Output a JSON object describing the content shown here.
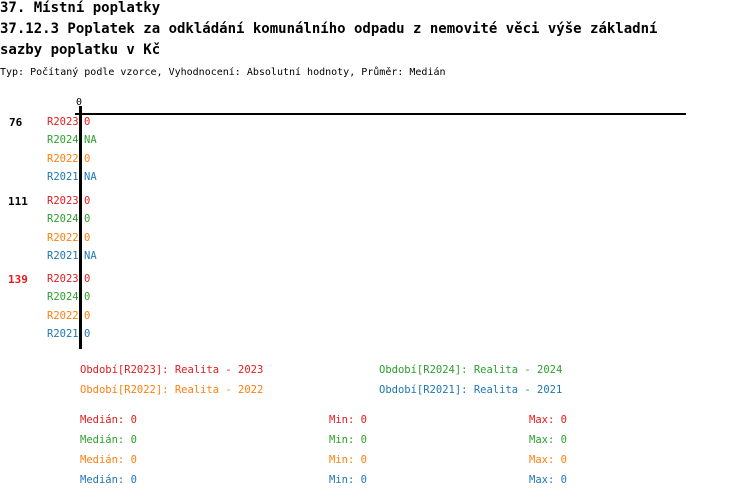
{
  "header": {
    "title1": "37. Místní poplatky",
    "title2a": "37.12.3 Poplatek za odkládání komunálního odpadu z nemovité věci   výše základní",
    "title2b": "sazby poplatku v Kč",
    "subtitle": "Typ: Počítaný podle vzorce, Vyhodnocení: Absolutní hodnoty, Průměr: Medián"
  },
  "colors": {
    "R2023": "#e41a1c",
    "R2024": "#2ca02c",
    "R2022": "#ff7f0e",
    "R2021": "#1f77b4",
    "highlight": "#e41a1c"
  },
  "chart_data": {
    "type": "bar",
    "orientation": "horizontal",
    "x_tick_labels": [
      "0"
    ],
    "groups": [
      {
        "label": "76",
        "highlight": false,
        "rows": [
          {
            "series": "R2023",
            "value": "0"
          },
          {
            "series": "R2024",
            "value": "NA"
          },
          {
            "series": "R2022",
            "value": "0"
          },
          {
            "series": "R2021",
            "value": "NA"
          }
        ]
      },
      {
        "label": "111",
        "highlight": false,
        "rows": [
          {
            "series": "R2023",
            "value": "0"
          },
          {
            "series": "R2024",
            "value": "0"
          },
          {
            "series": "R2022",
            "value": "0"
          },
          {
            "series": "R2021",
            "value": "NA"
          }
        ]
      },
      {
        "label": "139",
        "highlight": true,
        "rows": [
          {
            "series": "R2023",
            "value": "0"
          },
          {
            "series": "R2024",
            "value": "0"
          },
          {
            "series": "R2022",
            "value": "0"
          },
          {
            "series": "R2021",
            "value": "0"
          }
        ]
      }
    ],
    "legend": [
      {
        "series": "R2023",
        "text": "Období[R2023]: Realita - 2023"
      },
      {
        "series": "R2024",
        "text": "Období[R2024]: Realita - 2024"
      },
      {
        "series": "R2022",
        "text": "Období[R2022]: Realita - 2022"
      },
      {
        "series": "R2021",
        "text": "Období[R2021]: Realita - 2021"
      }
    ],
    "stats": [
      {
        "series": "R2023",
        "median": "Medián: 0",
        "min": "Min: 0",
        "max": "Max: 0"
      },
      {
        "series": "R2024",
        "median": "Medián: 0",
        "min": "Min: 0",
        "max": "Max: 0"
      },
      {
        "series": "R2022",
        "median": "Medián: 0",
        "min": "Min: 0",
        "max": "Max: 0"
      },
      {
        "series": "R2021",
        "median": "Medián: 0",
        "min": "Min: 0",
        "max": "Max: 0"
      }
    ]
  }
}
